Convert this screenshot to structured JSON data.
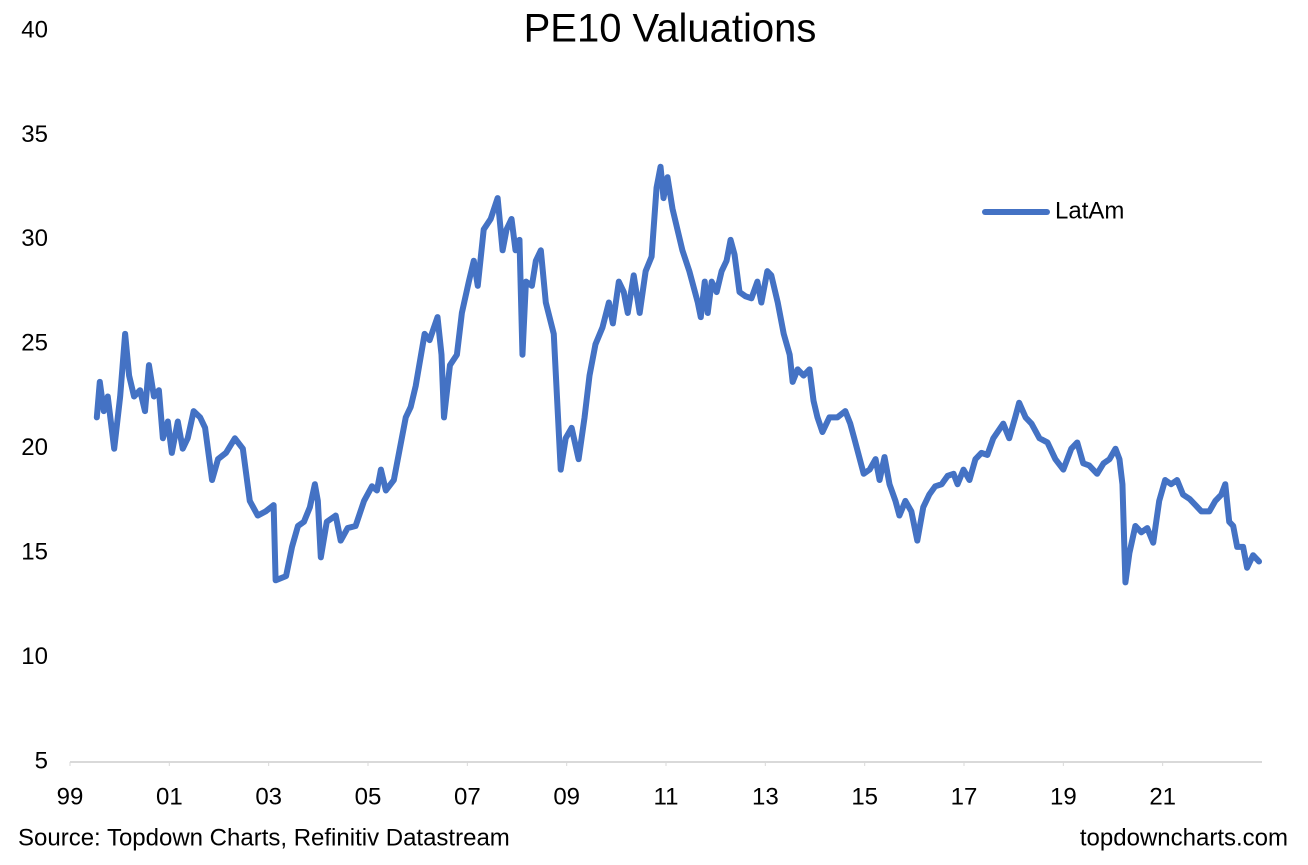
{
  "chart_data": {
    "type": "line",
    "title": "PE10 Valuations",
    "source": "Source: Topdown Charts, Refinitiv Datastream",
    "watermark": "topdowncharts.com",
    "legend": "upper right",
    "grid": false,
    "xlim": [
      1999,
      2023
    ],
    "xticks": [
      {
        "value": 1999,
        "label": "99"
      },
      {
        "value": 2001,
        "label": "01"
      },
      {
        "value": 2003,
        "label": "03"
      },
      {
        "value": 2005,
        "label": "05"
      },
      {
        "value": 2007,
        "label": "07"
      },
      {
        "value": 2009,
        "label": "09"
      },
      {
        "value": 2011,
        "label": "11"
      },
      {
        "value": 2013,
        "label": "13"
      },
      {
        "value": 2015,
        "label": "15"
      },
      {
        "value": 2017,
        "label": "17"
      },
      {
        "value": 2019,
        "label": "19"
      },
      {
        "value": 2021,
        "label": "21"
      }
    ],
    "ylim": [
      5,
      40
    ],
    "yticks": [
      5,
      10,
      15,
      20,
      25,
      30,
      35,
      40
    ],
    "x": [
      1999.54,
      1999.6,
      1999.68,
      1999.76,
      1999.89,
      2000.01,
      2000.11,
      2000.19,
      2000.29,
      2000.41,
      2000.51,
      2000.59,
      2000.69,
      2000.79,
      2000.87,
      2000.97,
      2001.05,
      2001.17,
      2001.27,
      2001.37,
      2001.49,
      2001.62,
      2001.72,
      2001.86,
      2001.98,
      2002.14,
      2002.32,
      2002.48,
      2002.62,
      2002.78,
      2002.94,
      2003.1,
      2003.14,
      2003.35,
      2003.47,
      2003.59,
      2003.71,
      2003.83,
      2003.93,
      2003.99,
      2004.05,
      2004.17,
      2004.35,
      2004.45,
      2004.59,
      2004.75,
      2004.92,
      2005.08,
      2005.18,
      2005.26,
      2005.36,
      2005.52,
      2005.64,
      2005.76,
      2005.86,
      2005.96,
      2006.14,
      2006.24,
      2006.4,
      2006.48,
      2006.53,
      2006.65,
      2006.79,
      2006.89,
      2007.03,
      2007.13,
      2007.21,
      2007.33,
      2007.47,
      2007.61,
      2007.71,
      2007.79,
      2007.89,
      2007.97,
      2008.05,
      2008.11,
      2008.18,
      2008.3,
      2008.38,
      2008.48,
      2008.58,
      2008.74,
      2008.88,
      2008.98,
      2009.1,
      2009.24,
      2009.36,
      2009.46,
      2009.58,
      2009.72,
      2009.85,
      2009.93,
      2010.05,
      2010.15,
      2010.23,
      2010.35,
      2010.47,
      2010.59,
      2010.71,
      2010.81,
      2010.89,
      2010.95,
      2011.03,
      2011.13,
      2011.23,
      2011.33,
      2011.47,
      2011.64,
      2011.7,
      2011.78,
      2011.84,
      2011.92,
      2012.02,
      2012.12,
      2012.22,
      2012.3,
      2012.38,
      2012.48,
      2012.6,
      2012.72,
      2012.84,
      2012.92,
      2013.04,
      2013.12,
      2013.25,
      2013.37,
      2013.49,
      2013.55,
      2013.65,
      2013.77,
      2013.89,
      2013.97,
      2014.05,
      2014.15,
      2014.29,
      2014.45,
      2014.61,
      2014.71,
      2014.79,
      2014.98,
      2015.1,
      2015.22,
      2015.3,
      2015.4,
      2015.5,
      2015.62,
      2015.7,
      2015.82,
      2015.94,
      2016.06,
      2016.18,
      2016.3,
      2016.42,
      2016.55,
      2016.67,
      2016.79,
      2016.87,
      2016.99,
      2017.11,
      2017.23,
      2017.35,
      2017.47,
      2017.59,
      2017.79,
      2017.91,
      2018.03,
      2018.11,
      2018.24,
      2018.36,
      2018.52,
      2018.68,
      2018.84,
      2019.0,
      2019.16,
      2019.28,
      2019.4,
      2019.52,
      2019.68,
      2019.81,
      2019.93,
      2020.05,
      2020.13,
      2020.19,
      2020.25,
      2020.33,
      2020.45,
      2020.57,
      2020.69,
      2020.81,
      2020.93,
      2021.05,
      2021.17,
      2021.29,
      2021.41,
      2021.54,
      2021.66,
      2021.78,
      2021.94,
      2022.06,
      2022.18,
      2022.26,
      2022.34,
      2022.42,
      2022.5,
      2022.62,
      2022.7,
      2022.82,
      2022.94
    ],
    "series": [
      {
        "name": "LatAm",
        "color": "#4472c4",
        "values": [
          21.5,
          23.2,
          21.8,
          22.5,
          20.0,
          22.5,
          25.5,
          23.5,
          22.5,
          22.8,
          21.8,
          24,
          22.5,
          22.8,
          20.5,
          21.3,
          19.8,
          21.3,
          20,
          20.5,
          21.8,
          21.5,
          21,
          18.5,
          19.5,
          19.8,
          20.5,
          20,
          17.5,
          16.8,
          17,
          17.3,
          13.7,
          13.9,
          15.3,
          16.3,
          16.5,
          17.2,
          18.3,
          17.5,
          14.8,
          16.5,
          16.8,
          15.6,
          16.2,
          16.3,
          17.5,
          18.2,
          18,
          19.0,
          18,
          18.5,
          20,
          21.5,
          22,
          23,
          25.5,
          25.2,
          26.3,
          24.5,
          21.5,
          24,
          24.5,
          26.5,
          28,
          29,
          27.8,
          30.5,
          31,
          32,
          29.5,
          30.5,
          31,
          29.5,
          30,
          24.5,
          28,
          27.8,
          29,
          29.5,
          27,
          25.5,
          19,
          20.5,
          21,
          19.5,
          21.5,
          23.5,
          25,
          25.8,
          27,
          26,
          28,
          27.5,
          26.5,
          28.3,
          26.5,
          28.5,
          29.2,
          32.5,
          33.5,
          32,
          33,
          31.5,
          30.5,
          29.5,
          28.5,
          27,
          26.3,
          28,
          26.5,
          28,
          27.5,
          28.5,
          29,
          30,
          29.3,
          27.5,
          27.3,
          27.2,
          28,
          27,
          28.5,
          28.3,
          27,
          25.5,
          24.5,
          23.2,
          23.8,
          23.5,
          23.8,
          22.3,
          21.5,
          20.8,
          21.5,
          21.5,
          21.8,
          21.2,
          20.5,
          18.8,
          19,
          19.5,
          18.5,
          19.6,
          18.3,
          17.5,
          16.8,
          17.5,
          17,
          15.6,
          17.2,
          17.8,
          18.2,
          18.3,
          18.7,
          18.8,
          18.3,
          19,
          18.5,
          19.5,
          19.8,
          19.7,
          20.5,
          21.2,
          20.5,
          21.5,
          22.2,
          21.5,
          21.2,
          20.5,
          20.3,
          19.5,
          19,
          20,
          20.3,
          19.3,
          19.2,
          18.8,
          19.3,
          19.5,
          20,
          19.5,
          18.3,
          13.6,
          15,
          16.3,
          16,
          16.2,
          15.5,
          17.5,
          18.5,
          18.3,
          18.5,
          17.8,
          17.6,
          17.3,
          17,
          17,
          17.5,
          17.8,
          18.3,
          16.5,
          16.3,
          15.3,
          15.3,
          14.3,
          14.9,
          14.6
        ]
      }
    ]
  }
}
